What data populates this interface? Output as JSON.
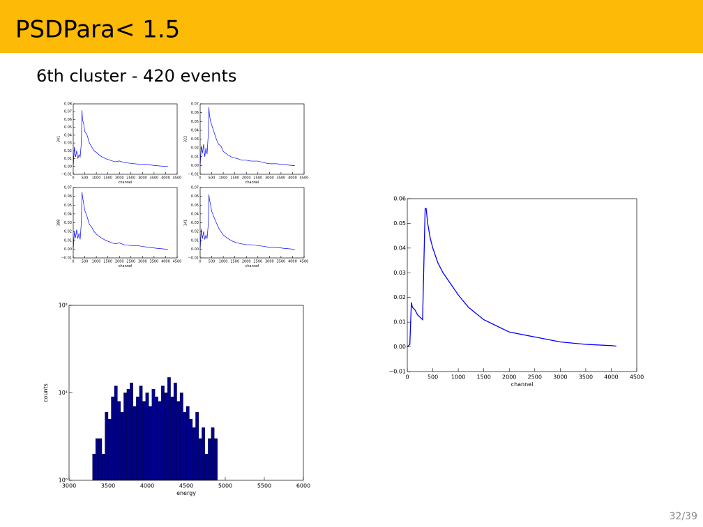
{
  "header": {
    "title": "PSDPara< 1.5"
  },
  "subtitle": "6th cluster - 420 events",
  "page_number": "32/39",
  "chart_data": [
    {
      "type": "line",
      "color": "#0000ff",
      "xlabel": "channel",
      "ylabel": "341",
      "xlim": [
        0,
        4500
      ],
      "ylim": [
        -0.01,
        0.08
      ],
      "xticks": [
        0,
        500,
        1000,
        1500,
        2000,
        2500,
        3000,
        3500,
        4000,
        4500
      ],
      "yticks": [
        {
          "value": -0.01,
          "label": "−0.01"
        },
        {
          "value": 0,
          "label": "0.00"
        },
        0.01,
        0.02,
        0.03,
        0.04,
        0.05,
        0.06,
        0.07,
        0.08
      ],
      "x": [
        0,
        50,
        100,
        150,
        200,
        250,
        300,
        350,
        380,
        400,
        450,
        500,
        600,
        700,
        800,
        900,
        1000,
        1200,
        1400,
        1600,
        1800,
        2000,
        2200,
        2500,
        2800,
        3000,
        3300,
        3600,
        4000,
        4100
      ],
      "values": [
        0.0,
        0.025,
        0.012,
        0.02,
        0.01,
        0.015,
        0.012,
        0.03,
        0.072,
        0.06,
        0.055,
        0.045,
        0.04,
        0.03,
        0.025,
        0.02,
        0.018,
        0.013,
        0.01,
        0.008,
        0.006,
        0.007,
        0.005,
        0.004,
        0.003,
        0.003,
        0.002,
        0.001,
        0.0,
        0.0
      ]
    },
    {
      "type": "line",
      "color": "#0000ff",
      "xlabel": "channel",
      "ylabel": "322",
      "xlim": [
        0,
        4500
      ],
      "ylim": [
        -0.01,
        0.07
      ],
      "xticks": [
        0,
        500,
        1000,
        1500,
        2000,
        2500,
        3000,
        3500,
        4000,
        4500
      ],
      "yticks": [
        {
          "value": -0.01,
          "label": "−0.01"
        },
        {
          "value": 0,
          "label": "0.00"
        },
        0.01,
        0.02,
        0.03,
        0.04,
        0.05,
        0.06,
        0.07
      ],
      "x": [
        0,
        50,
        100,
        150,
        200,
        250,
        300,
        350,
        380,
        400,
        450,
        500,
        600,
        700,
        800,
        900,
        1000,
        1200,
        1400,
        1600,
        1800,
        2000,
        2200,
        2500,
        2800,
        3000,
        3300,
        3600,
        4000,
        4100
      ],
      "values": [
        0.0,
        0.022,
        0.014,
        0.024,
        0.01,
        0.02,
        0.013,
        0.035,
        0.066,
        0.058,
        0.05,
        0.046,
        0.038,
        0.03,
        0.024,
        0.022,
        0.016,
        0.012,
        0.009,
        0.008,
        0.006,
        0.006,
        0.005,
        0.005,
        0.003,
        0.002,
        0.002,
        0.001,
        0.0,
        0.0
      ]
    },
    {
      "type": "line",
      "color": "#0000ff",
      "xlabel": "channel",
      "ylabel": "398",
      "xlim": [
        0,
        4500
      ],
      "ylim": [
        -0.01,
        0.07
      ],
      "xticks": [
        0,
        500,
        1000,
        1500,
        2000,
        2500,
        3000,
        3500,
        4000,
        4500
      ],
      "yticks": [
        {
          "value": -0.01,
          "label": "−0.01"
        },
        {
          "value": 0,
          "label": "0.00"
        },
        0.01,
        0.02,
        0.03,
        0.04,
        0.05,
        0.06,
        0.07
      ],
      "x": [
        0,
        50,
        100,
        150,
        200,
        250,
        300,
        350,
        380,
        400,
        450,
        500,
        600,
        700,
        800,
        900,
        1000,
        1200,
        1400,
        1600,
        1800,
        2000,
        2200,
        2500,
        2800,
        3000,
        3300,
        3600,
        4000,
        4100
      ],
      "values": [
        0.0,
        0.02,
        0.013,
        0.022,
        0.012,
        0.018,
        0.011,
        0.03,
        0.065,
        0.06,
        0.052,
        0.044,
        0.037,
        0.028,
        0.025,
        0.02,
        0.017,
        0.013,
        0.01,
        0.008,
        0.006,
        0.007,
        0.005,
        0.004,
        0.004,
        0.003,
        0.002,
        0.001,
        0.0,
        0.0
      ]
    },
    {
      "type": "line",
      "color": "#0000ff",
      "xlabel": "channel",
      "ylabel": "141",
      "xlim": [
        0,
        4500
      ],
      "ylim": [
        -0.01,
        0.07
      ],
      "xticks": [
        0,
        500,
        1000,
        1500,
        2000,
        2500,
        3000,
        3500,
        4000,
        4500
      ],
      "yticks": [
        {
          "value": -0.01,
          "label": "−0.01"
        },
        {
          "value": 0,
          "label": "0.00"
        },
        0.01,
        0.02,
        0.03,
        0.04,
        0.05,
        0.06,
        0.07
      ],
      "x": [
        0,
        50,
        100,
        150,
        200,
        250,
        300,
        350,
        380,
        400,
        450,
        500,
        600,
        700,
        800,
        900,
        1000,
        1200,
        1400,
        1600,
        1800,
        2000,
        2200,
        2500,
        2800,
        3000,
        3300,
        3600,
        4000,
        4100
      ],
      "values": [
        0.0,
        0.023,
        0.012,
        0.02,
        0.011,
        0.016,
        0.012,
        0.028,
        0.062,
        0.057,
        0.05,
        0.043,
        0.036,
        0.03,
        0.024,
        0.02,
        0.016,
        0.012,
        0.009,
        0.007,
        0.006,
        0.005,
        0.005,
        0.004,
        0.003,
        0.002,
        0.002,
        0.001,
        0.0,
        0.0
      ]
    },
    {
      "type": "histogram",
      "color": "#00008b",
      "xlabel": "energy",
      "ylabel": "counts",
      "log_y": true,
      "xlim": [
        3000,
        6000
      ],
      "ylim": [
        1,
        100
      ],
      "xticks": [
        3000,
        3500,
        4000,
        4500,
        5000,
        5500,
        6000
      ],
      "yticks": [
        {
          "value": 1,
          "label": "10⁰"
        },
        {
          "value": 10,
          "label": "10¹"
        },
        {
          "value": 100,
          "label": "10²"
        }
      ],
      "bins": [
        3300,
        3340,
        3380,
        3420,
        3460,
        3500,
        3540,
        3580,
        3620,
        3660,
        3700,
        3740,
        3780,
        3820,
        3860,
        3900,
        3940,
        3980,
        4020,
        4060,
        4100,
        4140,
        4180,
        4220,
        4260,
        4300,
        4340,
        4380,
        4420,
        4460,
        4500,
        4540,
        4580,
        4620,
        4660,
        4700,
        4740,
        4780,
        4820,
        4860,
        4900
      ],
      "values": [
        2,
        3,
        3,
        2,
        6,
        5,
        9,
        12,
        8,
        6,
        10,
        11,
        13,
        7,
        9,
        12,
        8,
        10,
        7,
        11,
        9,
        8,
        12,
        10,
        15,
        9,
        13,
        8,
        10,
        6,
        7,
        5,
        4,
        6,
        3,
        4,
        2,
        3,
        4,
        3
      ]
    },
    {
      "type": "line",
      "color": "#0000ff",
      "xlabel": "channel",
      "xlim": [
        0,
        4500
      ],
      "ylim": [
        -0.01,
        0.06
      ],
      "xticks": [
        0,
        500,
        1000,
        1500,
        2000,
        2500,
        3000,
        3500,
        4000,
        4500
      ],
      "yticks": [
        {
          "value": -0.01,
          "label": "−0.01"
        },
        {
          "value": 0,
          "label": "0.00"
        },
        0.01,
        0.02,
        0.03,
        0.04,
        0.05,
        0.06
      ],
      "x": [
        0,
        50,
        80,
        100,
        150,
        200,
        250,
        300,
        350,
        370,
        400,
        450,
        500,
        600,
        700,
        800,
        1000,
        1200,
        1500,
        1800,
        2000,
        2500,
        3000,
        3500,
        4000,
        4100
      ],
      "values": [
        0,
        0.001,
        0.018,
        0.016,
        0.015,
        0.013,
        0.012,
        0.011,
        0.056,
        0.056,
        0.05,
        0.044,
        0.04,
        0.034,
        0.03,
        0.027,
        0.021,
        0.016,
        0.011,
        0.008,
        0.006,
        0.004,
        0.002,
        0.001,
        0.0005,
        0.0003
      ]
    }
  ]
}
